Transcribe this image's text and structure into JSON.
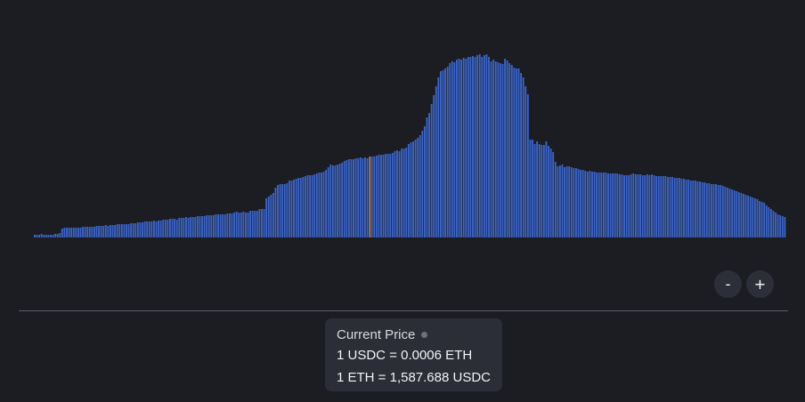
{
  "zoom": {
    "zoom_out_label": "-",
    "zoom_in_label": "+"
  },
  "price_card": {
    "title": "Current Price",
    "line_usdc": "1 USDC = 0.0006 ETH",
    "line_eth": "1 ETH = 1,587.688 USDC"
  },
  "colors": {
    "background": "#1c1d23",
    "bar": "#3b64c8",
    "current_price_marker": "#c77d2e",
    "card": "#2b2e36",
    "divider": "#5a5d66"
  },
  "chart_data": {
    "type": "bar",
    "title": "",
    "xlabel": "",
    "ylabel": "",
    "ylim": [
      0,
      240
    ],
    "current_price_index": 146,
    "values": [
      3,
      3,
      3,
      4,
      3,
      3,
      3,
      3,
      3,
      4,
      4,
      5,
      10,
      11,
      11,
      11,
      11,
      11,
      11,
      11,
      11,
      12,
      12,
      12,
      12,
      12,
      12,
      13,
      13,
      13,
      13,
      14,
      13,
      14,
      14,
      14,
      15,
      15,
      15,
      15,
      15,
      15,
      16,
      16,
      16,
      17,
      17,
      17,
      18,
      18,
      18,
      18,
      19,
      18,
      19,
      19,
      20,
      20,
      20,
      21,
      21,
      21,
      20,
      22,
      22,
      22,
      23,
      22,
      23,
      23,
      23,
      24,
      24,
      24,
      24,
      25,
      25,
      25,
      25,
      26,
      26,
      26,
      26,
      26,
      27,
      27,
      27,
      28,
      29,
      28,
      28,
      29,
      28,
      28,
      30,
      30,
      30,
      30,
      32,
      32,
      32,
      44,
      46,
      48,
      50,
      56,
      59,
      60,
      60,
      60,
      61,
      64,
      64,
      65,
      66,
      67,
      67,
      68,
      69,
      70,
      70,
      70,
      71,
      72,
      73,
      73,
      74,
      76,
      79,
      82,
      81,
      81,
      82,
      83,
      84,
      86,
      87,
      88,
      88,
      88,
      89,
      89,
      90,
      89,
      90,
      89,
      91,
      91,
      91,
      92,
      93,
      93,
      93,
      94,
      94,
      94,
      95,
      97,
      98,
      97,
      100,
      100,
      101,
      105,
      107,
      108,
      110,
      112,
      115,
      120,
      125,
      135,
      140,
      150,
      160,
      170,
      180,
      187,
      188,
      190,
      192,
      196,
      198,
      197,
      200,
      201,
      200,
      202,
      201,
      203,
      203,
      204,
      203,
      205,
      206,
      203,
      205,
      206,
      203,
      198,
      200,
      198,
      197,
      196,
      195,
      201,
      199,
      196,
      194,
      191,
      190,
      190,
      185,
      180,
      170,
      161,
      110,
      110,
      105,
      108,
      105,
      104,
      104,
      108,
      103,
      100,
      96,
      85,
      80,
      81,
      82,
      79,
      80,
      80,
      79,
      78,
      78,
      77,
      76,
      76,
      75,
      74,
      75,
      74,
      74,
      73,
      73,
      73,
      73,
      73,
      72,
      72,
      72,
      72,
      72,
      71,
      71,
      70,
      70,
      70,
      71,
      72,
      71,
      71,
      71,
      70,
      70,
      71,
      70,
      71,
      70,
      69,
      69,
      69,
      69,
      69,
      68,
      68,
      68,
      67,
      67,
      67,
      66,
      66,
      65,
      65,
      64,
      64,
      64,
      63,
      63,
      62,
      62,
      61,
      61,
      60,
      60,
      60,
      59,
      59,
      58,
      57,
      56,
      55,
      54,
      53,
      52,
      51,
      50,
      49,
      48,
      47,
      46,
      45,
      44,
      43,
      41,
      40,
      39,
      36,
      34,
      32,
      30,
      28,
      26,
      25,
      24,
      23
    ]
  }
}
